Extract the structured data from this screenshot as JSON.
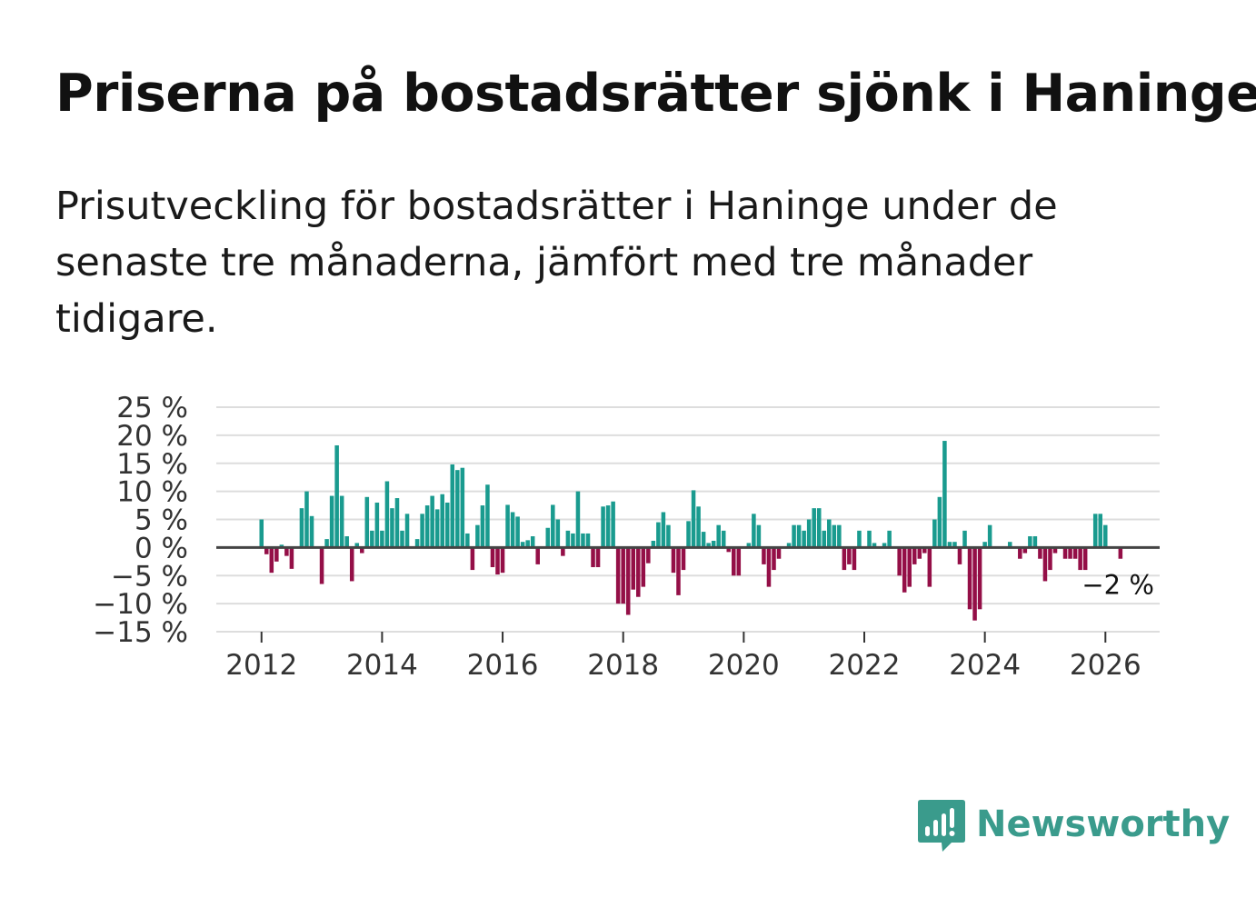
{
  "title": "Priserna på bostadsrätter sjönk i Haninge",
  "subtitle": "Prisutveckling för bostadsrätter i Haninge under de senaste tre månaderna, jämfört med tre månader tidigare.",
  "colors": {
    "positive": "#1a9b8f",
    "negative": "#940f47",
    "grid": "#dddddd",
    "zero_line": "#444444",
    "brand": "#3a9b8c"
  },
  "logo": {
    "text": "Newsworthy",
    "icon": "newsworthy-logo-icon"
  },
  "chart_data": {
    "type": "bar",
    "title": "",
    "xlabel": "",
    "ylabel": "",
    "ylim": [
      -15,
      25
    ],
    "xlim": [
      2011.25,
      2026.9
    ],
    "yticks": [
      25,
      20,
      15,
      10,
      5,
      0,
      -5,
      -10,
      -15
    ],
    "ytick_labels": [
      "25 %",
      "20 %",
      "15 %",
      "10 %",
      "5 %",
      "0 %",
      "−5 %",
      "−10 %",
      "−15 %"
    ],
    "xticks": [
      2012,
      2014,
      2016,
      2018,
      2020,
      2022,
      2024,
      2026
    ],
    "xtick_labels": [
      "2012",
      "2014",
      "2016",
      "2018",
      "2020",
      "2022",
      "2024",
      "2026"
    ],
    "start": 2012.0,
    "step": 0.08333,
    "values": [
      5,
      -1.2,
      -4.5,
      -2.5,
      0.5,
      -1.5,
      -3.8,
      0,
      7,
      10,
      5.6,
      0,
      -6.5,
      1.5,
      9.2,
      18.2,
      9.2,
      2,
      -6,
      0.8,
      -1,
      9,
      3,
      8,
      3,
      11.8,
      7,
      8.8,
      3,
      6,
      0,
      1.5,
      6,
      7.5,
      9.2,
      6.8,
      9.5,
      8,
      14.8,
      13.8,
      14.2,
      2.5,
      -4,
      4,
      7.5,
      11.2,
      -3.5,
      -4.8,
      -4.5,
      7.6,
      6.3,
      5.5,
      1,
      1.3,
      2,
      -3,
      0,
      3.5,
      7.6,
      5,
      -1.5,
      3,
      2.5,
      10,
      2.5,
      2.5,
      -3.5,
      -3.5,
      7.3,
      7.5,
      8.2,
      -10,
      -10,
      -12,
      -7.5,
      -8.8,
      -7,
      -2.8,
      1.2,
      4.5,
      6.3,
      4,
      -4.5,
      -8.5,
      -4,
      4.7,
      10.2,
      7.3,
      2.8,
      0.8,
      1.2,
      4,
      3,
      -0.8,
      -5,
      -5,
      0,
      0.8,
      6,
      4,
      -3,
      -7,
      -4,
      -2,
      0,
      0.8,
      4,
      4,
      3,
      5,
      7,
      7,
      3,
      5,
      4,
      4,
      -4,
      -3,
      -4,
      3,
      0,
      3,
      0.8,
      0,
      0.8,
      3,
      0,
      -5,
      -8,
      -7,
      -3,
      -2,
      -1,
      -7,
      5,
      9,
      19,
      1,
      1,
      -3,
      3,
      -11,
      -13,
      -11,
      1,
      4,
      0,
      0,
      0,
      1,
      0,
      -2,
      -1,
      2,
      2,
      -2,
      -6,
      -4,
      -1,
      0,
      -2,
      -2,
      -2,
      -4,
      -4,
      0,
      6,
      6,
      4,
      0,
      0,
      -2
    ],
    "annotations": [
      {
        "text": "−2 %",
        "target": "last-bar"
      }
    ]
  }
}
